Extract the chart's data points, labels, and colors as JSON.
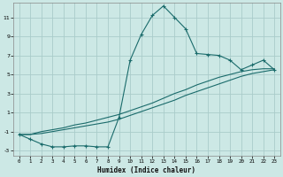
{
  "xlabel": "Humidex (Indice chaleur)",
  "background_color": "#cce8e5",
  "grid_color": "#aaccca",
  "line_color": "#1a6b6b",
  "xlim": [
    -0.5,
    23.5
  ],
  "ylim": [
    -3.5,
    12.5
  ],
  "xticks": [
    0,
    1,
    2,
    3,
    4,
    5,
    6,
    7,
    8,
    9,
    10,
    11,
    12,
    13,
    14,
    15,
    16,
    17,
    18,
    19,
    20,
    21,
    22,
    23
  ],
  "yticks": [
    -3,
    -1,
    1,
    3,
    5,
    7,
    9,
    11
  ],
  "line1_x": [
    0,
    1,
    2,
    3,
    4,
    5,
    6,
    7,
    8,
    9,
    10,
    11,
    12,
    13,
    14,
    15,
    16,
    17,
    18,
    19,
    20,
    21,
    22,
    23
  ],
  "line1_y": [
    -1.3,
    -1.8,
    -2.3,
    -2.6,
    -2.6,
    -2.5,
    -2.5,
    -2.6,
    -2.6,
    0.5,
    6.5,
    9.2,
    11.2,
    12.2,
    11.0,
    9.8,
    7.2,
    7.1,
    7.0,
    6.5,
    5.5,
    6.0,
    6.5,
    5.5
  ],
  "line2_x": [
    0,
    1,
    2,
    3,
    4,
    5,
    6,
    7,
    8,
    9,
    10,
    11,
    12,
    13,
    14,
    15,
    16,
    17,
    18,
    19,
    20,
    21,
    22,
    23
  ],
  "line2_y": [
    -1.3,
    -1.3,
    -1.2,
    -1.0,
    -0.8,
    -0.6,
    -0.4,
    -0.2,
    0.0,
    0.3,
    0.7,
    1.1,
    1.5,
    1.9,
    2.3,
    2.8,
    3.2,
    3.6,
    4.0,
    4.4,
    4.8,
    5.1,
    5.3,
    5.5
  ],
  "line3_x": [
    0,
    1,
    2,
    3,
    4,
    5,
    6,
    7,
    8,
    9,
    10,
    11,
    12,
    13,
    14,
    15,
    16,
    17,
    18,
    19,
    20,
    21,
    22,
    23
  ],
  "line3_y": [
    -1.3,
    -1.3,
    -1.0,
    -0.8,
    -0.6,
    -0.3,
    -0.1,
    0.2,
    0.5,
    0.8,
    1.2,
    1.6,
    2.0,
    2.5,
    3.0,
    3.4,
    3.9,
    4.3,
    4.7,
    5.0,
    5.3,
    5.5,
    5.6,
    5.6
  ]
}
